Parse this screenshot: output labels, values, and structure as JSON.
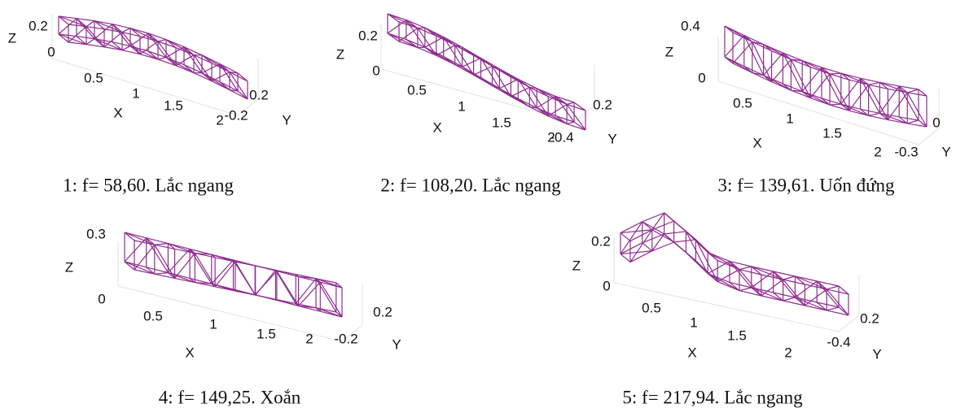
{
  "panels": [
    {
      "caption": "1: f= 58,60. Lắc ngang",
      "z_label": "Z",
      "x_label": "X",
      "y_label": "Y",
      "z_ticks": [
        "0.2",
        "0"
      ],
      "x_ticks": [
        "0.5",
        "1",
        "1.5",
        "2"
      ],
      "y_ticks": [
        "0.2",
        "-0.2"
      ]
    },
    {
      "caption": "2: f= 108,20. Lắc ngang",
      "z_label": "Z",
      "x_label": "X",
      "y_label": "Y",
      "z_ticks": [
        "0.2",
        "0"
      ],
      "x_ticks": [
        "0.5",
        "1",
        "1.5",
        "2"
      ],
      "y_ticks": [
        "0.2",
        "-0.4"
      ]
    },
    {
      "caption": "3: f= 139,61. Uốn đứng",
      "z_label": "Z",
      "x_label": "X",
      "y_label": "Y",
      "z_ticks": [
        "0.4",
        "0"
      ],
      "x_ticks": [
        "0.5",
        "1",
        "1.5",
        "2"
      ],
      "y_ticks": [
        "0",
        "-0.3"
      ]
    },
    {
      "caption": "4: f= 149,25. Xoắn",
      "z_label": "Z",
      "x_label": "X",
      "y_label": "Y",
      "z_ticks": [
        "0.3",
        "0"
      ],
      "x_ticks": [
        "0.5",
        "1",
        "1.5",
        "2"
      ],
      "y_ticks": [
        "0.2",
        "-0.2"
      ]
    },
    {
      "caption": "5: f= 217,94. Lắc ngang",
      "z_label": "Z",
      "x_label": "X",
      "y_label": "Y",
      "z_ticks": [
        "0.2",
        "0"
      ],
      "x_ticks": [
        "0.5",
        "1",
        "1.5",
        "2"
      ],
      "y_ticks": [
        "0.2",
        "-0.4"
      ]
    }
  ]
}
